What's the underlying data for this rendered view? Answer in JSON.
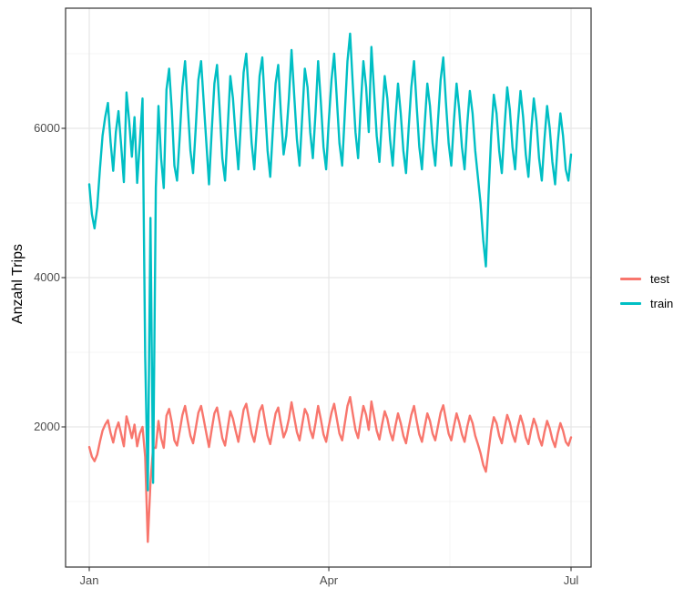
{
  "figure": {
    "y_axis_title": "Anzahl Trips",
    "background_color": "#FFFFFF",
    "panel_border_color": "#333333",
    "grid_major_color": "#E6E6E6",
    "grid_minor_color": "#F0F0F0",
    "tick_mark_color": "#333333",
    "axis_text_color": "#4D4D4D"
  },
  "legend": {
    "position": "right",
    "items": [
      {
        "label": "test",
        "color": "#F8766D"
      },
      {
        "label": "train",
        "color": "#00BFC4"
      }
    ]
  },
  "chart_data": {
    "type": "line",
    "title": "",
    "xlabel": "",
    "ylabel": "Anzahl Trips",
    "x_unit": "days since Jan 1, daily observations",
    "x_ticks": [
      {
        "day": 0,
        "label": "Jan"
      },
      {
        "day": 90,
        "label": "Apr"
      },
      {
        "day": 181,
        "label": "Jul"
      }
    ],
    "x_minor_ticks_days": [
      45,
      135.5
    ],
    "y_ticks": [
      2000,
      4000,
      6000
    ],
    "y_minor_ticks": [
      1000,
      3000,
      5000,
      7000
    ],
    "ylim": [
      120,
      7610
    ],
    "xlim_days": [
      -9,
      190
    ],
    "grid": true,
    "legend_position": "right",
    "series": [
      {
        "name": "test",
        "color": "#F8766D",
        "values": [
          1730,
          1600,
          1540,
          1630,
          1800,
          1950,
          2030,
          2090,
          1920,
          1790,
          1960,
          2060,
          1900,
          1740,
          2140,
          2010,
          1850,
          2030,
          1740,
          1910,
          2000,
          1600,
          460,
          1250,
          1720,
          1720,
          2080,
          1850,
          1720,
          2150,
          2240,
          2060,
          1820,
          1750,
          1950,
          2160,
          2280,
          2080,
          1880,
          1780,
          1980,
          2190,
          2280,
          2100,
          1910,
          1730,
          1960,
          2180,
          2260,
          2060,
          1850,
          1750,
          1980,
          2210,
          2110,
          1950,
          1800,
          2010,
          2230,
          2310,
          2110,
          1910,
          1800,
          2000,
          2210,
          2290,
          2080,
          1880,
          1770,
          1980,
          2180,
          2260,
          2050,
          1860,
          1950,
          2110,
          2330,
          2130,
          1930,
          1820,
          2030,
          2240,
          2160,
          1960,
          1850,
          2050,
          2280,
          2100,
          1900,
          1800,
          2010,
          2190,
          2310,
          2110,
          1910,
          1820,
          2050,
          2280,
          2400,
          2180,
          1960,
          1850,
          2080,
          2280,
          2160,
          1960,
          2340,
          2150,
          1950,
          1830,
          2030,
          2210,
          2110,
          1930,
          1820,
          2010,
          2180,
          2050,
          1880,
          1780,
          1980,
          2160,
          2280,
          2080,
          1900,
          1800,
          2000,
          2180,
          2080,
          1910,
          1820,
          2010,
          2190,
          2290,
          2100,
          1910,
          1820,
          2010,
          2180,
          2060,
          1900,
          1800,
          2000,
          2150,
          2050,
          1880,
          1770,
          1650,
          1490,
          1400,
          1680,
          1950,
          2130,
          2050,
          1880,
          1780,
          1980,
          2160,
          2060,
          1900,
          1800,
          2000,
          2150,
          2030,
          1860,
          1770,
          1960,
          2110,
          2010,
          1850,
          1750,
          1930,
          2080,
          1980,
          1830,
          1730,
          1910,
          2050,
          1950,
          1800,
          1750,
          1860
        ]
      },
      {
        "name": "train",
        "color": "#00BFC4",
        "values": [
          5250,
          4850,
          4660,
          4950,
          5450,
          5900,
          6150,
          6340,
          5820,
          5430,
          5950,
          6230,
          5760,
          5280,
          6480,
          6100,
          5620,
          6150,
          5270,
          5800,
          6400,
          2950,
          1150,
          4800,
          1250,
          5200,
          6300,
          5600,
          5200,
          6520,
          6800,
          6250,
          5500,
          5300,
          5900,
          6550,
          6900,
          6300,
          5700,
          5400,
          6000,
          6650,
          6900,
          6350,
          5800,
          5250,
          5950,
          6600,
          6850,
          6250,
          5600,
          5300,
          6000,
          6700,
          6400,
          5900,
          5450,
          6100,
          6750,
          7000,
          6400,
          5800,
          5450,
          6050,
          6700,
          6950,
          6300,
          5700,
          5350,
          6000,
          6600,
          6850,
          6200,
          5650,
          5900,
          6400,
          7050,
          6450,
          5850,
          5500,
          6150,
          6800,
          6550,
          5950,
          5600,
          6200,
          6900,
          6350,
          5750,
          5450,
          6100,
          6650,
          7000,
          6400,
          5800,
          5500,
          6200,
          6900,
          7270,
          6600,
          5950,
          5600,
          6300,
          6900,
          6550,
          5950,
          7090,
          6500,
          5900,
          5550,
          6150,
          6700,
          6400,
          5850,
          5500,
          6100,
          6600,
          6200,
          5700,
          5400,
          6000,
          6550,
          6900,
          6300,
          5750,
          5450,
          6050,
          6600,
          6300,
          5800,
          5500,
          6100,
          6650,
          6950,
          6350,
          5800,
          5500,
          6100,
          6600,
          6250,
          5750,
          5450,
          6050,
          6500,
          6200,
          5700,
          5350,
          5000,
          4500,
          4150,
          5100,
          5900,
          6450,
          6200,
          5700,
          5400,
          6000,
          6550,
          6250,
          5750,
          5450,
          6050,
          6500,
          6150,
          5650,
          5350,
          5950,
          6400,
          6100,
          5600,
          5300,
          5850,
          6300,
          6000,
          5550,
          5250,
          5800,
          6200,
          5900,
          5450,
          5300,
          5650
        ]
      }
    ]
  }
}
